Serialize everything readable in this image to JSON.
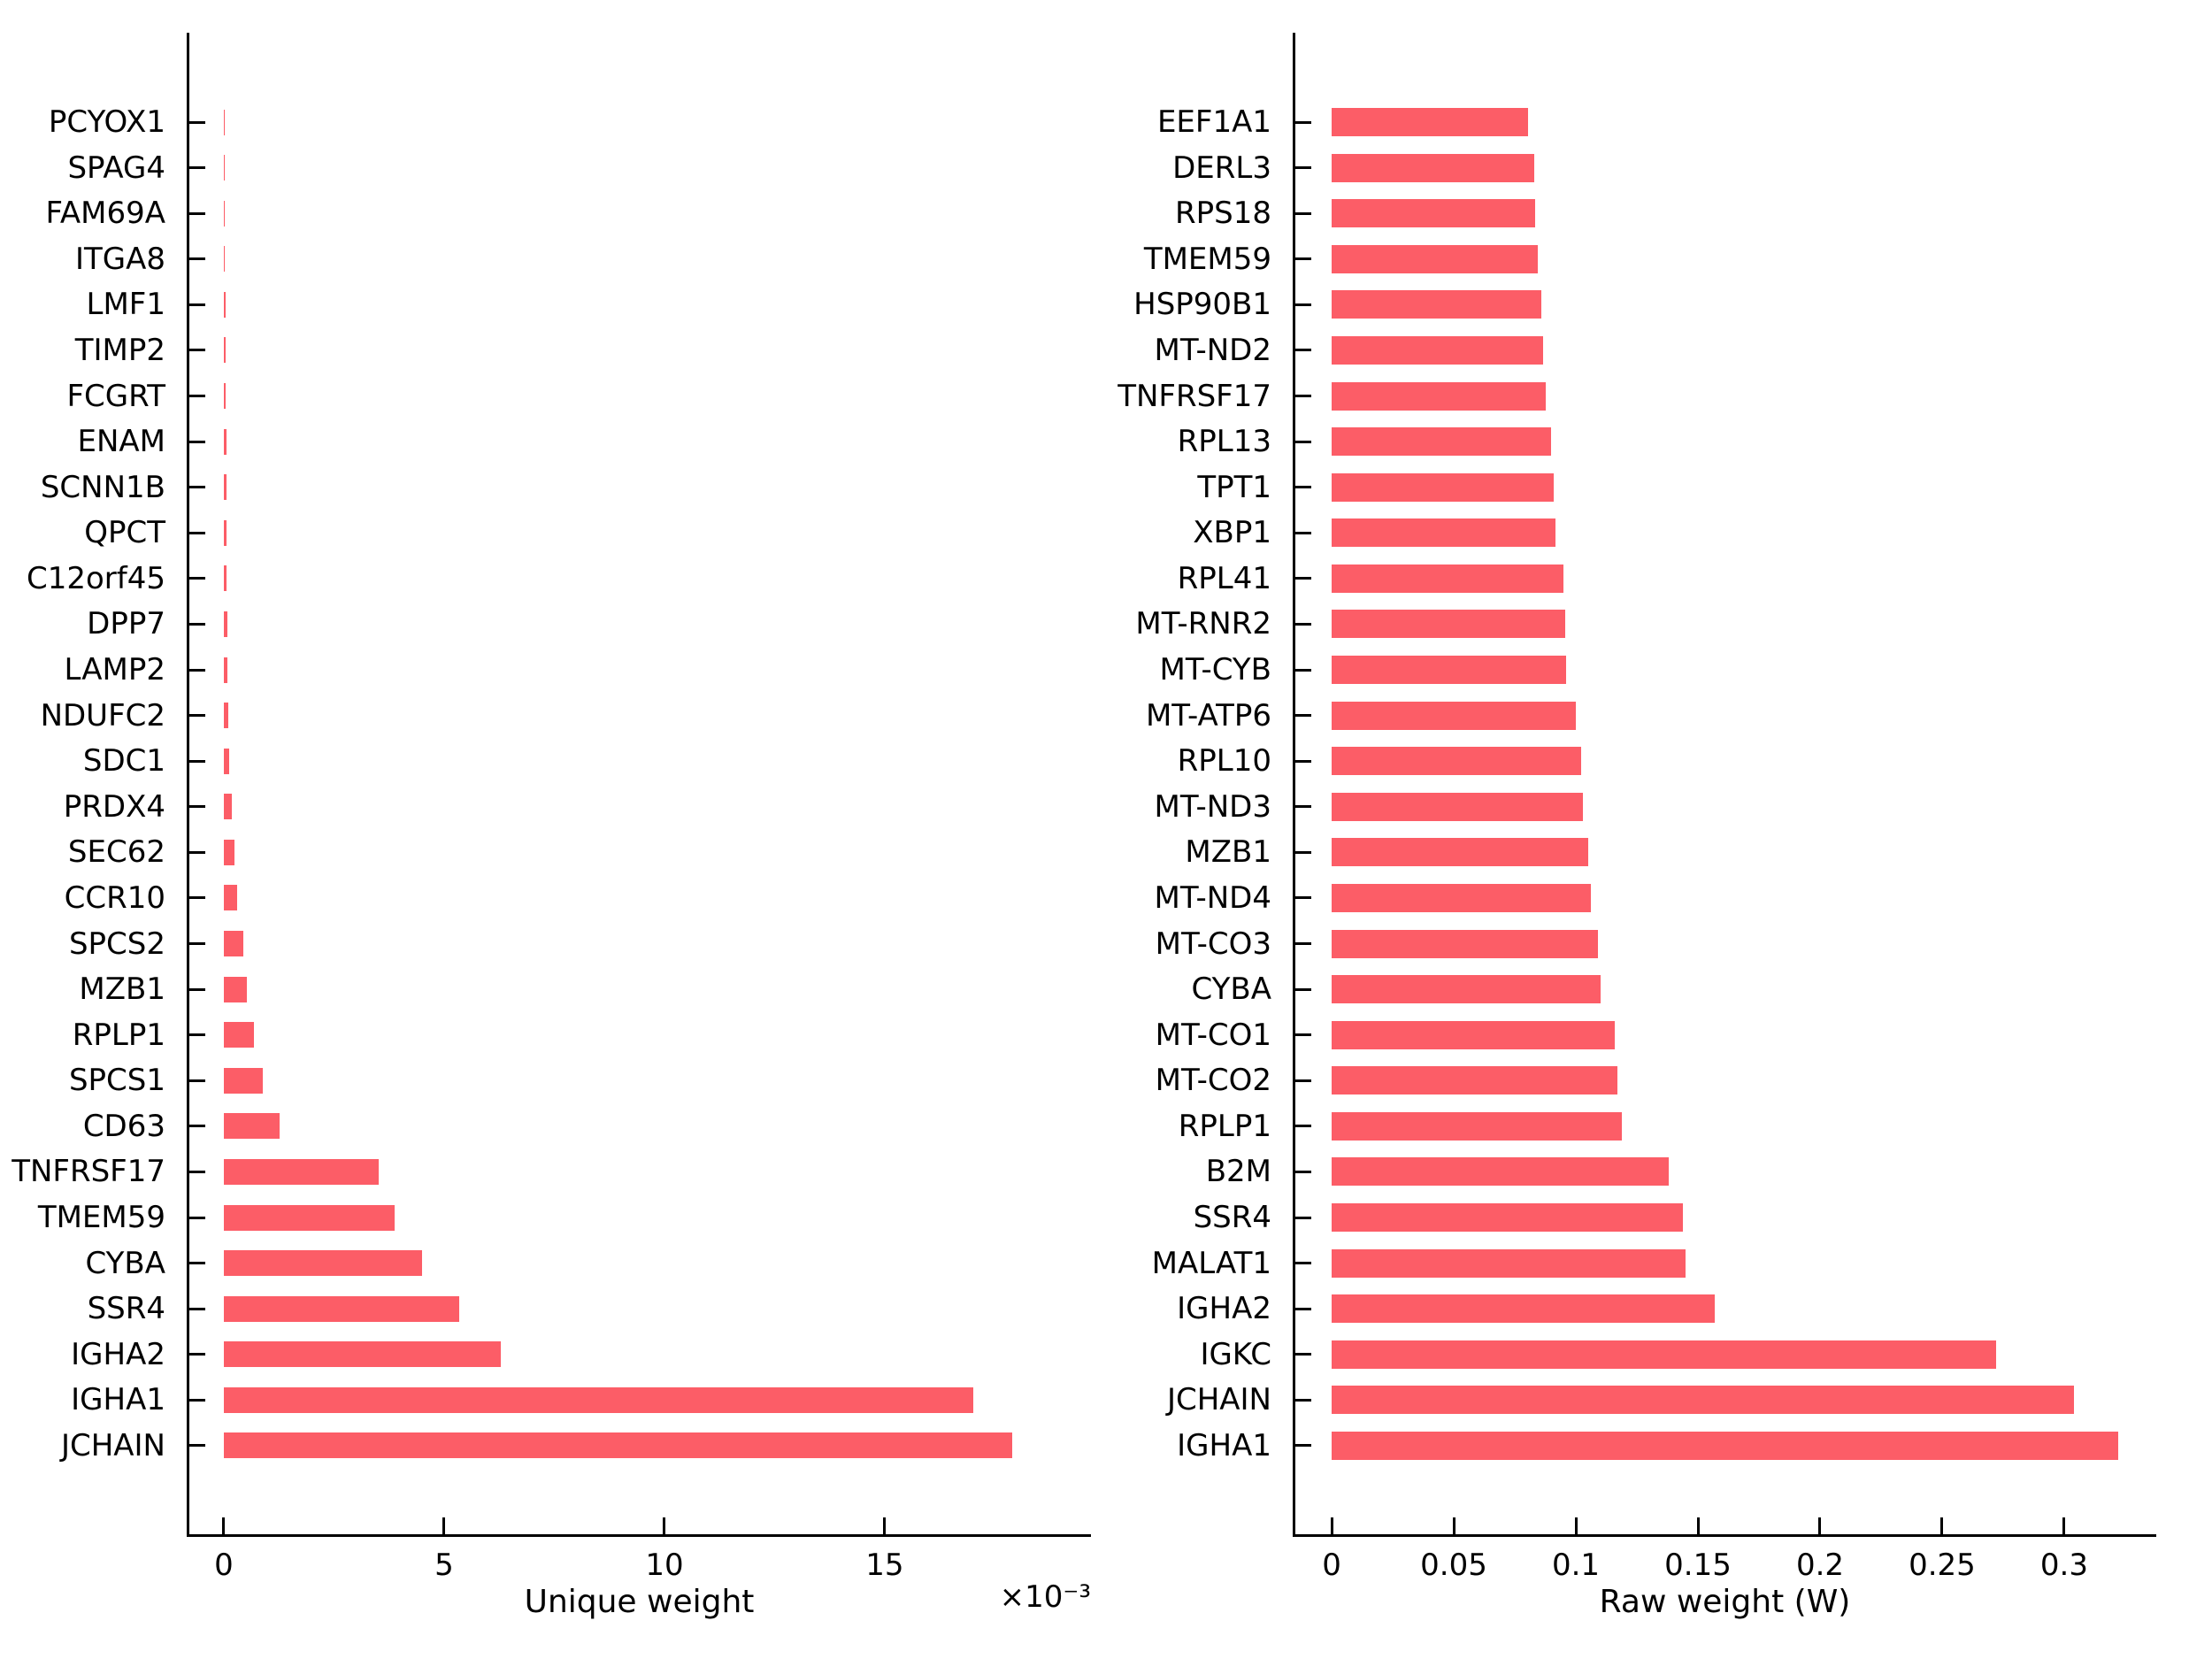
{
  "figure": {
    "background": "#ffffff",
    "accent_bar_color": "#FC5D67"
  },
  "chart_data": [
    {
      "type": "bar",
      "orientation": "horizontal",
      "title": "",
      "xlabel": "Unique weight",
      "ylabel": "",
      "offset_text": "×10⁻³",
      "value_units": "×10⁻³",
      "xlim": [
        -0.823,
        19.68
      ],
      "xticks": [
        0,
        5,
        10,
        15
      ],
      "xtick_labels": [
        "0",
        "5",
        "10",
        "15"
      ],
      "grid": false,
      "legend": "none",
      "bar_color": "#FC5D67",
      "categories_top_to_bottom": [
        "PCYOX1",
        "SPAG4",
        "FAM69A",
        "ITGA8",
        "LMF1",
        "TIMP2",
        "FCGRT",
        "ENAM",
        "SCNN1B",
        "QPCT",
        "C12orf45",
        "DPP7",
        "LAMP2",
        "NDUFC2",
        "SDC1",
        "PRDX4",
        "SEC62",
        "CCR10",
        "SPCS2",
        "MZB1",
        "RPLP1",
        "SPCS1",
        "CD63",
        "TNFRSF17",
        "TMEM59",
        "CYBA",
        "SSR4",
        "IGHA2",
        "IGHA1",
        "JCHAIN"
      ],
      "values_top_to_bottom": [
        0.01,
        0.02,
        0.025,
        0.03,
        0.04,
        0.045,
        0.05,
        0.055,
        0.06,
        0.065,
        0.07,
        0.075,
        0.085,
        0.1,
        0.13,
        0.18,
        0.25,
        0.3,
        0.44,
        0.52,
        0.68,
        0.89,
        1.27,
        3.52,
        3.88,
        4.5,
        5.35,
        6.28,
        17.0,
        17.9
      ]
    },
    {
      "type": "bar",
      "orientation": "horizontal",
      "title": "",
      "xlabel": "Raw weight (W)",
      "ylabel": "",
      "offset_text": "",
      "value_units": "W",
      "xlim": [
        -0.0156,
        0.3377
      ],
      "xticks": [
        0,
        0.05,
        0.1,
        0.15,
        0.2,
        0.25,
        0.3
      ],
      "xtick_labels": [
        "0",
        "0.05",
        "0.1",
        "0.15",
        "0.2",
        "0.25",
        "0.3"
      ],
      "grid": false,
      "legend": "none",
      "bar_color": "#FC5D67",
      "categories_top_to_bottom": [
        "EEF1A1",
        "DERL3",
        "RPS18",
        "TMEM59",
        "HSP90B1",
        "MT-ND2",
        "TNFRSF17",
        "RPL13",
        "TPT1",
        "XBP1",
        "RPL41",
        "MT-RNR2",
        "MT-CYB",
        "MT-ATP6",
        "RPL10",
        "MT-ND3",
        "MZB1",
        "MT-ND4",
        "MT-CO3",
        "CYBA",
        "MT-CO1",
        "MT-CO2",
        "RPLP1",
        "B2M",
        "SSR4",
        "MALAT1",
        "IGHA2",
        "IGKC",
        "JCHAIN",
        "IGHA1"
      ],
      "values_top_to_bottom": [
        0.0805,
        0.0828,
        0.0832,
        0.0845,
        0.0858,
        0.0865,
        0.0875,
        0.09,
        0.091,
        0.0915,
        0.095,
        0.0955,
        0.096,
        0.1,
        0.102,
        0.103,
        0.105,
        0.106,
        0.109,
        0.11,
        0.116,
        0.117,
        0.119,
        0.138,
        0.144,
        0.145,
        0.157,
        0.272,
        0.304,
        0.322
      ]
    }
  ]
}
